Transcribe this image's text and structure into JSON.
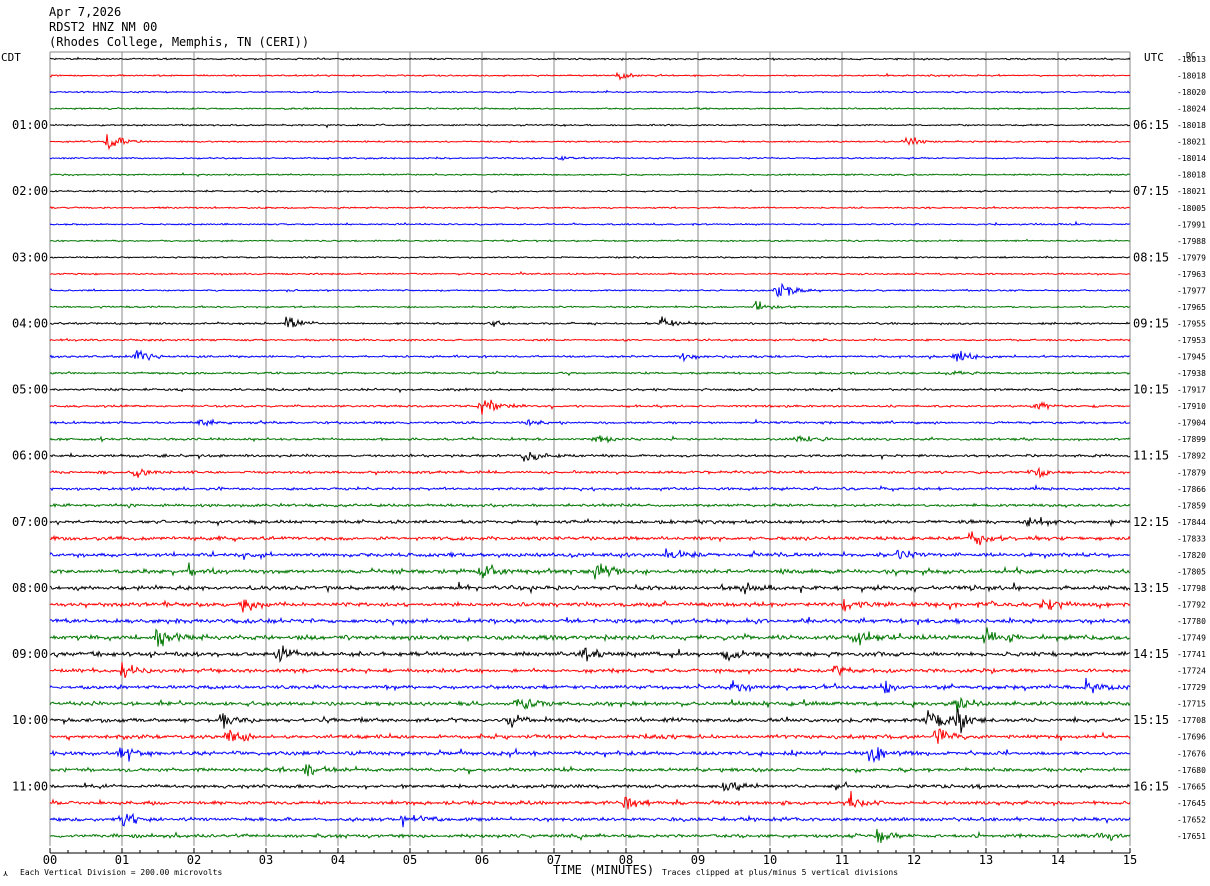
{
  "header": {
    "date": "Apr 7,2026",
    "station": "RDST2 HNZ NM 00",
    "location": "(Rhodes College, Memphis, TN (CERI))"
  },
  "left_tz": "CDT",
  "right_tz": "UTC",
  "dc_header": "DC",
  "footer": {
    "scale_note": "Each Vertical Division =  200.00 microvolts",
    "xlabel": "TIME (MINUTES)",
    "clip_note": "Traces clipped at plus/minus 5 vertical divisions"
  },
  "colors": {
    "traces": [
      "#000000",
      "#ff0000",
      "#0000ff",
      "#007700"
    ],
    "grid": "#888888"
  },
  "chart_data": {
    "type": "line",
    "subtype": "helicorder",
    "x_tick_labels": [
      "00",
      "01",
      "02",
      "03",
      "04",
      "05",
      "06",
      "07",
      "08",
      "09",
      "10",
      "11",
      "12",
      "13",
      "14",
      "15"
    ],
    "xlim": [
      0,
      15
    ],
    "rows": 48,
    "minutes_per_row": 15,
    "left_hour_labels": [
      "01:00",
      "02:00",
      "03:00",
      "04:00",
      "05:00",
      "06:00",
      "07:00",
      "08:00",
      "09:00",
      "10:00",
      "11:00"
    ],
    "right_hour_labels": [
      "06:15",
      "07:15",
      "08:15",
      "09:15",
      "10:15",
      "11:15",
      "12:15",
      "13:15",
      "14:15",
      "15:15",
      "16:15"
    ],
    "hour_label_rows": [
      4,
      8,
      12,
      16,
      20,
      24,
      28,
      32,
      36,
      40,
      44
    ],
    "dc_offsets": [
      "-18013",
      "-18018",
      "-18020",
      "-18024",
      "-18018",
      "-18021",
      "-18014",
      "-18018",
      "-18021",
      "-18005",
      "-17991",
      "-17988",
      "-17979",
      "-17963",
      "-17977",
      "-17965",
      "-17955",
      "-17953",
      "-17945",
      "-17938",
      "-17917",
      "-17910",
      "-17904",
      "-17899",
      "-17892",
      "-17879",
      "-17866",
      "-17859",
      "-17844",
      "-17833",
      "-17820",
      "-17805",
      "-17798",
      "-17792",
      "-17780",
      "-17749",
      "-17741",
      "-17724",
      "-17729",
      "-17715",
      "-17708",
      "-17696",
      "-17676",
      "-17680",
      "-17665",
      "-17645",
      "-17652",
      "-17651"
    ],
    "row_noise_level": [
      1,
      1,
      1,
      1,
      1,
      1,
      1,
      1,
      1,
      1,
      1,
      1,
      1,
      1,
      1,
      1,
      1.2,
      1.2,
      1.3,
      1.3,
      1.4,
      1.4,
      1.5,
      1.5,
      1.6,
      1.7,
      1.7,
      1.8,
      2,
      2.2,
      2.4,
      2.6,
      2.6,
      2.6,
      2.6,
      2.8,
      2.6,
      2.4,
      2.2,
      2.4,
      2.4,
      2.4,
      2.4,
      2.2,
      2.2,
      2.2,
      2.2,
      2.2
    ],
    "events": [
      {
        "row": 1,
        "minute": 7.9,
        "amp": 3
      },
      {
        "row": 5,
        "minute": 0.8,
        "amp": 9
      },
      {
        "row": 5,
        "minute": 11.9,
        "amp": 4
      },
      {
        "row": 6,
        "minute": 7.1,
        "amp": 1.5
      },
      {
        "row": 14,
        "minute": 10.1,
        "amp": 7
      },
      {
        "row": 15,
        "minute": 9.8,
        "amp": 4
      },
      {
        "row": 16,
        "minute": 3.3,
        "amp": 5
      },
      {
        "row": 16,
        "minute": 8.5,
        "amp": 4
      },
      {
        "row": 16,
        "minute": 6.1,
        "amp": 2
      },
      {
        "row": 18,
        "minute": 1.2,
        "amp": 5
      },
      {
        "row": 18,
        "minute": 12.6,
        "amp": 6
      },
      {
        "row": 18,
        "minute": 8.8,
        "amp": 2.5
      },
      {
        "row": 19,
        "minute": 12.5,
        "amp": 3
      },
      {
        "row": 21,
        "minute": 6.0,
        "amp": 8
      },
      {
        "row": 21,
        "minute": 13.7,
        "amp": 3
      },
      {
        "row": 22,
        "minute": 2.1,
        "amp": 3
      },
      {
        "row": 22,
        "minute": 6.6,
        "amp": 3
      },
      {
        "row": 23,
        "minute": 7.6,
        "amp": 3
      },
      {
        "row": 23,
        "minute": 10.4,
        "amp": 3
      },
      {
        "row": 24,
        "minute": 6.6,
        "amp": 4
      },
      {
        "row": 25,
        "minute": 1.2,
        "amp": 4
      },
      {
        "row": 25,
        "minute": 13.7,
        "amp": 3
      },
      {
        "row": 28,
        "minute": 13.6,
        "amp": 4
      },
      {
        "row": 29,
        "minute": 12.8,
        "amp": 5
      },
      {
        "row": 30,
        "minute": 8.6,
        "amp": 5
      },
      {
        "row": 30,
        "minute": 11.8,
        "amp": 4
      },
      {
        "row": 31,
        "minute": 6.0,
        "amp": 7
      },
      {
        "row": 31,
        "minute": 7.6,
        "amp": 9
      },
      {
        "row": 31,
        "minute": 1.9,
        "amp": 4
      },
      {
        "row": 32,
        "minute": 9.6,
        "amp": 4
      },
      {
        "row": 33,
        "minute": 2.7,
        "amp": 5
      },
      {
        "row": 33,
        "minute": 11.0,
        "amp": 5
      },
      {
        "row": 33,
        "minute": 13.8,
        "amp": 5
      },
      {
        "row": 35,
        "minute": 1.5,
        "amp": 7
      },
      {
        "row": 35,
        "minute": 11.2,
        "amp": 7
      },
      {
        "row": 35,
        "minute": 13.0,
        "amp": 6
      },
      {
        "row": 36,
        "minute": 3.2,
        "amp": 6
      },
      {
        "row": 36,
        "minute": 7.4,
        "amp": 6
      },
      {
        "row": 36,
        "minute": 9.4,
        "amp": 5
      },
      {
        "row": 37,
        "minute": 1.0,
        "amp": 6
      },
      {
        "row": 37,
        "minute": 10.9,
        "amp": 5
      },
      {
        "row": 38,
        "minute": 9.5,
        "amp": 5
      },
      {
        "row": 38,
        "minute": 11.6,
        "amp": 5
      },
      {
        "row": 38,
        "minute": 14.4,
        "amp": 5
      },
      {
        "row": 39,
        "minute": 6.5,
        "amp": 6
      },
      {
        "row": 39,
        "minute": 12.6,
        "amp": 6
      },
      {
        "row": 40,
        "minute": 12.2,
        "amp": 10
      },
      {
        "row": 40,
        "minute": 12.6,
        "amp": 9
      },
      {
        "row": 40,
        "minute": 2.4,
        "amp": 5
      },
      {
        "row": 40,
        "minute": 6.4,
        "amp": 5
      },
      {
        "row": 41,
        "minute": 12.3,
        "amp": 7
      },
      {
        "row": 41,
        "minute": 2.5,
        "amp": 5
      },
      {
        "row": 42,
        "minute": 11.4,
        "amp": 7
      },
      {
        "row": 42,
        "minute": 1.0,
        "amp": 5
      },
      {
        "row": 43,
        "minute": 3.6,
        "amp": 5
      },
      {
        "row": 44,
        "minute": 9.4,
        "amp": 6
      },
      {
        "row": 45,
        "minute": 11.1,
        "amp": 6
      },
      {
        "row": 45,
        "minute": 8.0,
        "amp": 5
      },
      {
        "row": 46,
        "minute": 1.0,
        "amp": 5
      },
      {
        "row": 46,
        "minute": 4.9,
        "amp": 5
      },
      {
        "row": 47,
        "minute": 11.5,
        "amp": 4
      },
      {
        "row": 47,
        "minute": 14.6,
        "amp": 4
      }
    ]
  }
}
